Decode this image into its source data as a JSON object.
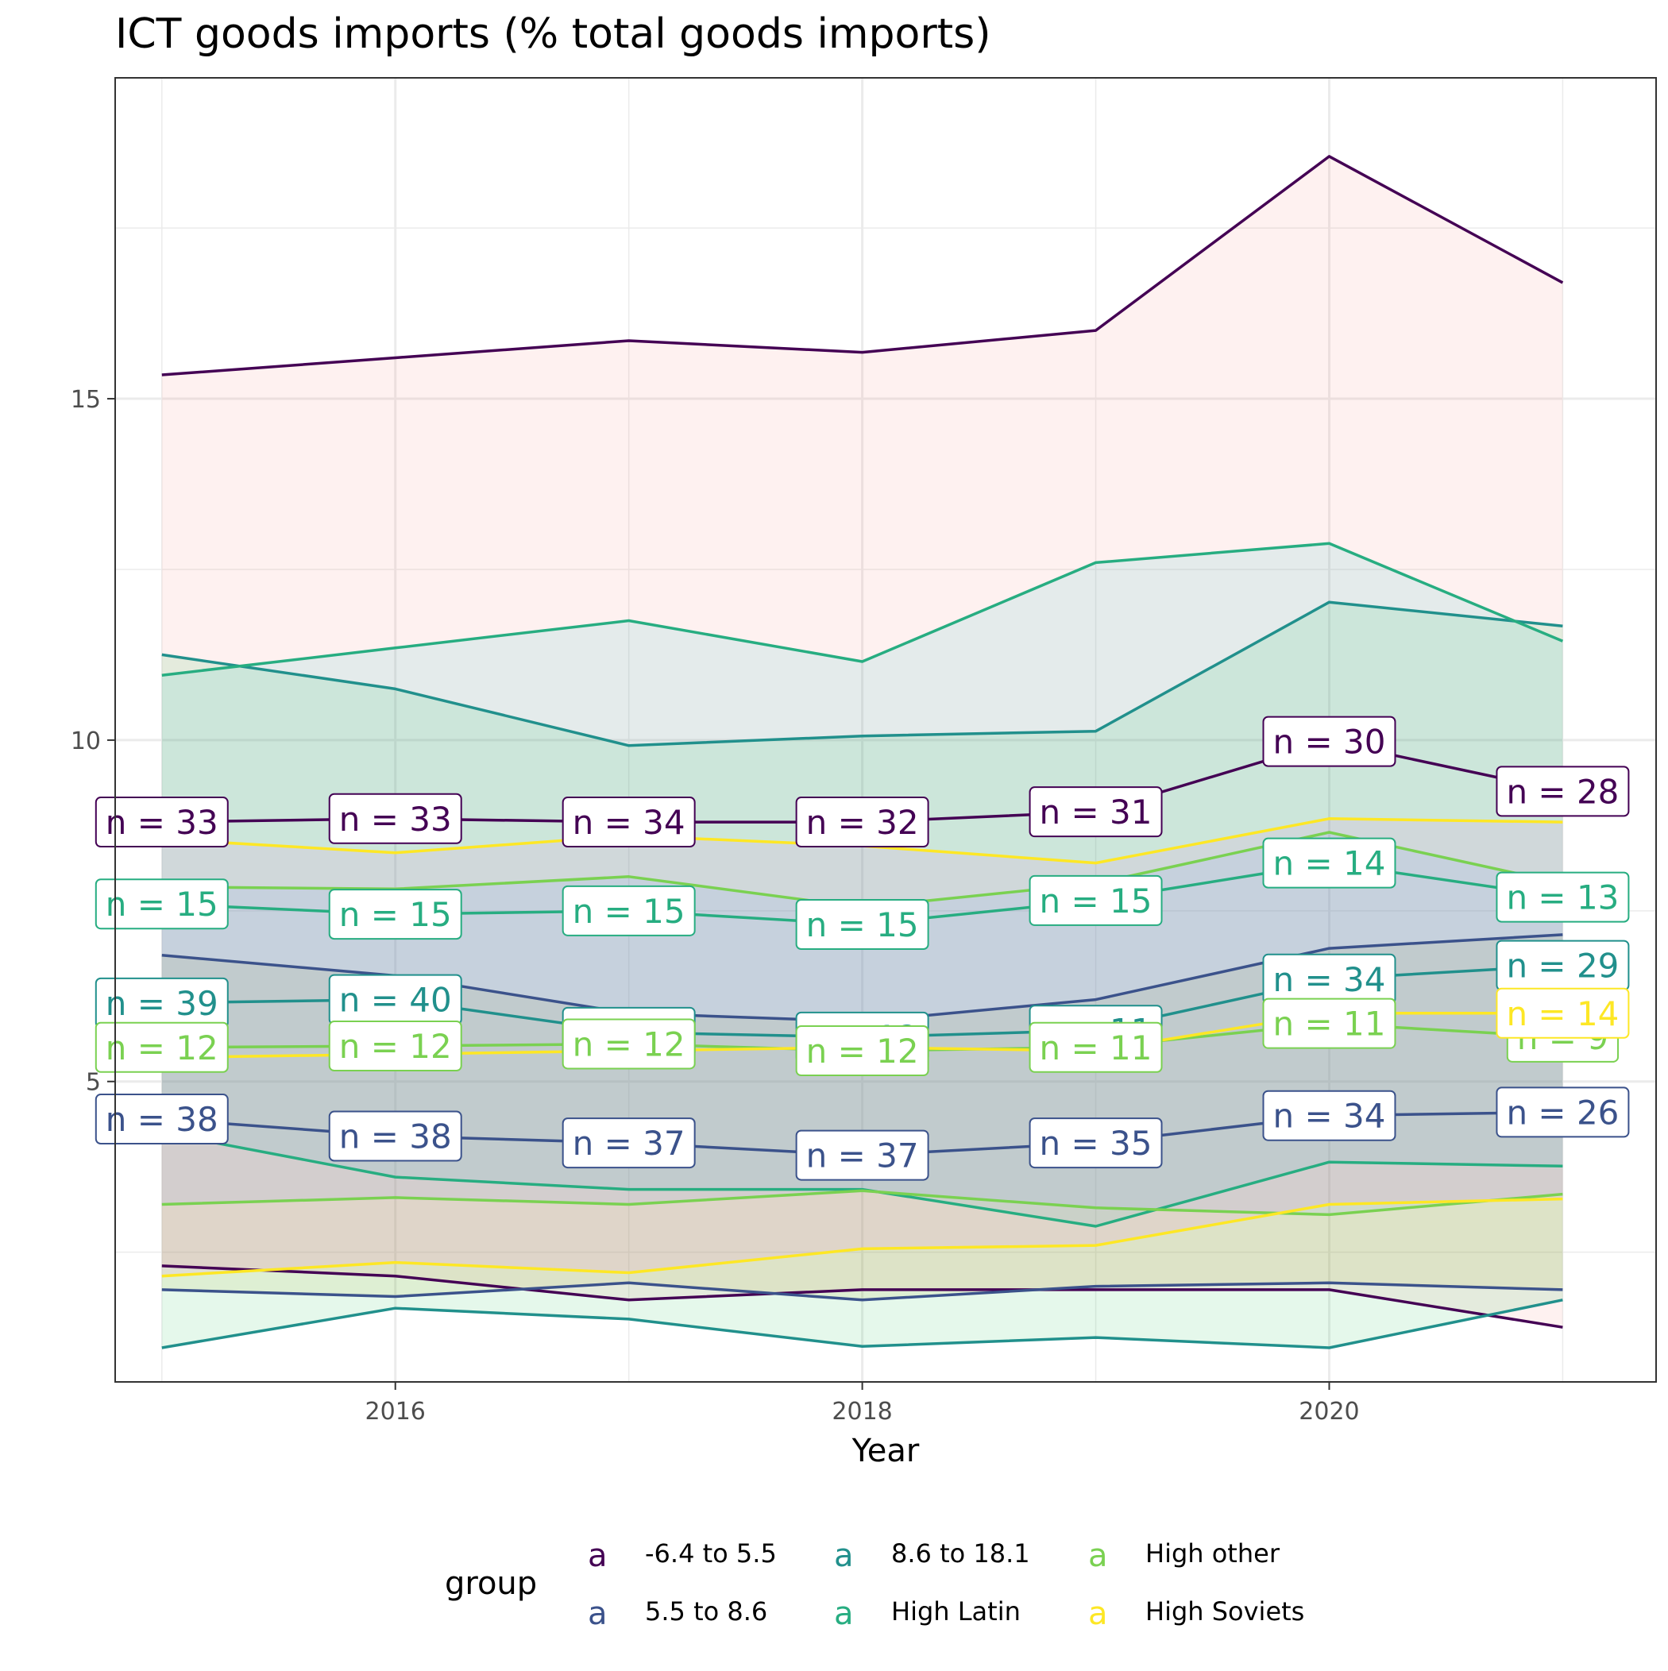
{
  "chart_data": {
    "type": "line",
    "title": "ICT goods imports (% total goods imports)",
    "subtitle": "",
    "xlabel": "Year",
    "ylabel": "",
    "xlim": [
      2014.8,
      2021.4
    ],
    "ylim": [
      0.6,
      19.7
    ],
    "x_ticks": [
      2016,
      2018,
      2020
    ],
    "y_ticks": [
      5,
      10,
      15
    ],
    "x": [
      2015,
      2016,
      2017,
      2018,
      2019,
      2020,
      2021
    ],
    "grid": true,
    "legend": {
      "title": "group",
      "position": "bottom",
      "symbol": "a",
      "entries": [
        "-6.4 to 5.5",
        "5.5 to 8.6",
        "8.6 to 18.1",
        "High Latin",
        "High other",
        "High Soviets"
      ]
    },
    "series": [
      {
        "name": "-6.4 to 5.5",
        "color": "#440154",
        "ribbon_color": "#f8766d",
        "upper": [
          15.35,
          15.6,
          15.85,
          15.68,
          16.0,
          18.55,
          16.7
        ],
        "median": [
          8.8,
          8.85,
          8.8,
          8.8,
          8.95,
          9.98,
          9.25
        ],
        "lower": [
          2.3,
          2.15,
          1.8,
          1.95,
          1.95,
          1.95,
          1.4
        ],
        "labels": [
          "n = 33",
          "n = 33",
          "n = 34",
          "n = 32",
          "n = 31",
          "n = 30",
          "n = 28"
        ]
      },
      {
        "name": "5.5 to 8.6",
        "color": "#3b528b",
        "ribbon_color": "#b79f00",
        "upper": [
          6.85,
          6.55,
          6.0,
          5.88,
          6.2,
          6.95,
          7.15
        ],
        "median": [
          4.45,
          4.2,
          4.1,
          3.92,
          4.1,
          4.5,
          4.55
        ],
        "lower": [
          1.95,
          1.85,
          2.05,
          1.8,
          2.0,
          2.05,
          1.95
        ],
        "labels": [
          "n = 38",
          "n = 38",
          "n = 37",
          "n = 37",
          "n = 35",
          "n = 34",
          "n = 26"
        ]
      },
      {
        "name": "8.6 to 18.1",
        "color": "#21908c",
        "ribbon_color": "#00ba38",
        "upper": [
          11.25,
          10.75,
          9.92,
          10.06,
          10.13,
          12.02,
          11.67
        ],
        "median": [
          6.15,
          6.2,
          5.72,
          5.65,
          5.75,
          6.5,
          6.7
        ],
        "lower": [
          1.1,
          1.68,
          1.52,
          1.12,
          1.25,
          1.1,
          1.8
        ],
        "labels": [
          "n = 39",
          "n = 40",
          "n = 12",
          "n = 12",
          "n = 11",
          "n = 34",
          "n = 29"
        ]
      },
      {
        "name": "High Latin",
        "color": "#27ad81",
        "ribbon_color": "#00bfc4",
        "upper": [
          10.95,
          11.35,
          11.75,
          11.15,
          12.6,
          12.88,
          11.45
        ],
        "median": [
          7.6,
          7.45,
          7.5,
          7.3,
          7.65,
          8.2,
          7.7
        ],
        "lower": [
          4.25,
          3.6,
          3.42,
          3.42,
          2.88,
          3.82,
          3.76
        ],
        "labels": [
          "n = 15",
          "n = 15",
          "n = 15",
          "n = 15",
          "n = 15",
          "n = 14",
          "n = 13"
        ]
      },
      {
        "name": "High other",
        "color": "#7ad151",
        "ribbon_color": "#619cff",
        "upper": [
          7.85,
          7.82,
          8.0,
          7.55,
          7.9,
          8.65,
          7.9
        ],
        "median": [
          5.5,
          5.52,
          5.55,
          5.45,
          5.5,
          5.85,
          5.65
        ],
        "lower": [
          3.2,
          3.3,
          3.2,
          3.4,
          3.15,
          3.05,
          3.35
        ],
        "labels": [
          "n = 12",
          "n = 12",
          "n = 12",
          "n = 12",
          "n = 11",
          "n = 11",
          "n = 9"
        ]
      },
      {
        "name": "High Soviets",
        "color": "#fde725",
        "ribbon_color": "#f564e3",
        "upper": [
          8.55,
          8.35,
          8.6,
          8.45,
          8.2,
          8.85,
          8.8
        ],
        "median": [
          5.35,
          5.4,
          5.45,
          5.5,
          5.45,
          6.0,
          6.0
        ],
        "lower": [
          2.15,
          2.35,
          2.2,
          2.55,
          2.6,
          3.2,
          3.28
        ],
        "labels": [
          "",
          "",
          "",
          "",
          "",
          "",
          "n = 14"
        ]
      }
    ]
  }
}
